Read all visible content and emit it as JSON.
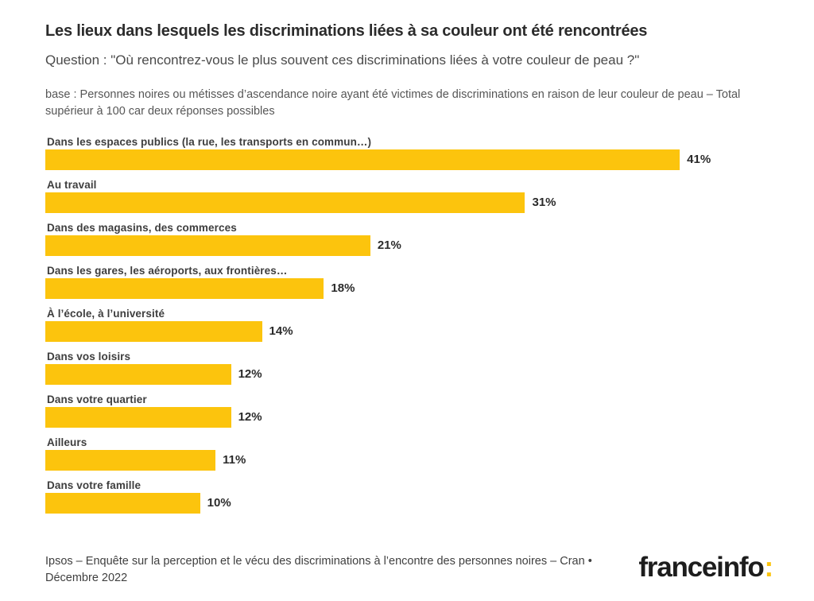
{
  "header": {
    "title": "Les lieux dans lesquels les discriminations liées à sa couleur ont été rencontrées",
    "question": "Question : \"Où rencontrez-vous le plus souvent ces discriminations liées à votre couleur de peau ?\"",
    "base_note": "base : Personnes noires ou métisses d’ascendance noire ayant été victimes de discriminations en raison de leur couleur de peau – Total supérieur à 100 car deux réponses possibles"
  },
  "chart_data": {
    "type": "bar",
    "orientation": "horizontal",
    "categories": [
      "Dans les espaces publics (la rue, les transports en commun…)",
      "Au travail",
      "Dans des magasins, des commerces",
      "Dans les gares, les aéroports, aux frontières…",
      "À l’école, à l’université",
      "Dans vos loisirs",
      "Dans votre quartier",
      "Ailleurs",
      "Dans votre famille"
    ],
    "values": [
      41,
      31,
      21,
      18,
      14,
      12,
      12,
      11,
      10
    ],
    "value_suffix": "%",
    "title": "Les lieux dans lesquels les discriminations liées à sa couleur ont été rencontrées",
    "xlabel": "",
    "ylabel": "",
    "xlim": [
      0,
      41
    ],
    "grid": false,
    "legend": false,
    "bar_color": "#fcc40d",
    "value_label_color": "#2b2b2b"
  },
  "footer": {
    "source": "Ipsos – Enquête sur la perception et le vécu des discriminations à l’encontre des personnes noires – Cran • Décembre 2022",
    "logo_text": "franceinfo",
    "logo_colon": ":"
  },
  "colors": {
    "accent_yellow": "#fcc40d",
    "title_text": "#2b2b2b",
    "body_text": "#4a4a4a"
  }
}
